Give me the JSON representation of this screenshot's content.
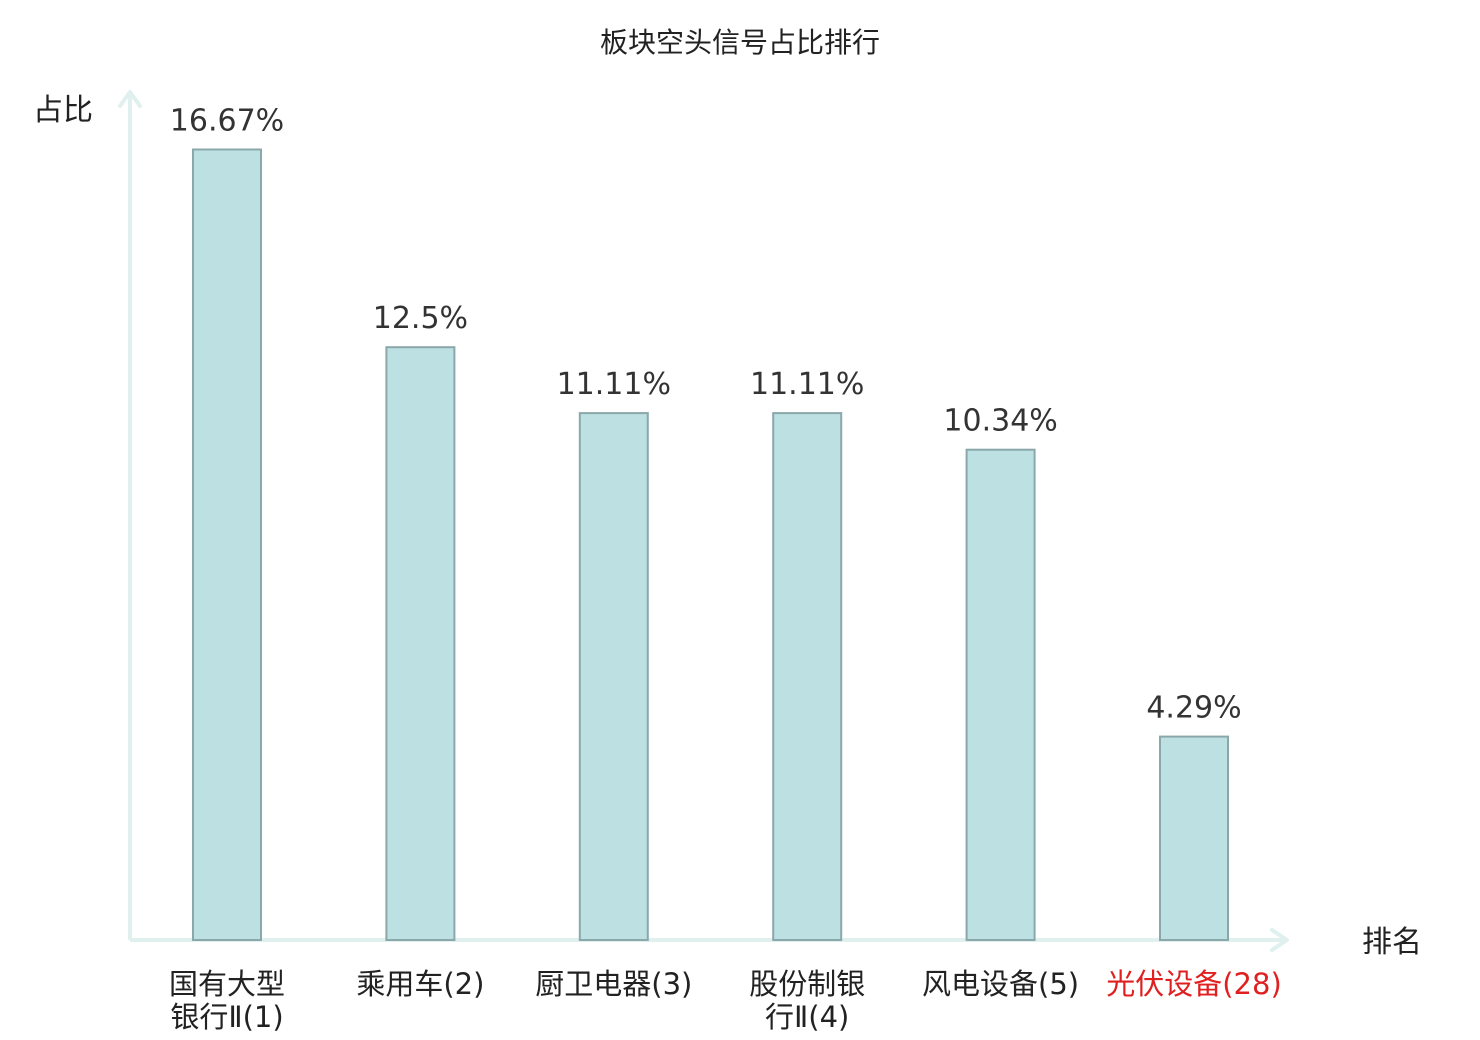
{
  "chart_data": {
    "type": "bar",
    "title": "板块空头信号占比排行",
    "ylabel": "占比",
    "xlabel": "排名",
    "ylim": [
      0,
      17.84
    ],
    "grid": false,
    "categories": [
      "国有大型银行Ⅱ(1)",
      "乘用车(2)",
      "厨卫电器(3)",
      "股份制银行Ⅱ(4)",
      "风电设备(5)",
      "光伏设备(28)"
    ],
    "category_lines": [
      [
        "国有大型",
        "银行Ⅱ(1)"
      ],
      [
        "乘用车(2)"
      ],
      [
        "厨卫电器(3)"
      ],
      [
        "股份制银",
        "行Ⅱ(4)"
      ],
      [
        "风电设备(5)"
      ],
      [
        "光伏设备(28)"
      ]
    ],
    "values": [
      16.67,
      12.5,
      11.11,
      11.11,
      10.34,
      4.29
    ],
    "value_labels": [
      "16.67%",
      "12.5%",
      "11.11%",
      "11.11%",
      "10.34%",
      "4.29%"
    ],
    "highlight_index": 5,
    "colors": {
      "bar_fill": "#bde0e3",
      "bar_stroke": "#8aa8aa",
      "axis": "#dff0ee",
      "label": "#222222",
      "highlight": "#e02020"
    }
  }
}
